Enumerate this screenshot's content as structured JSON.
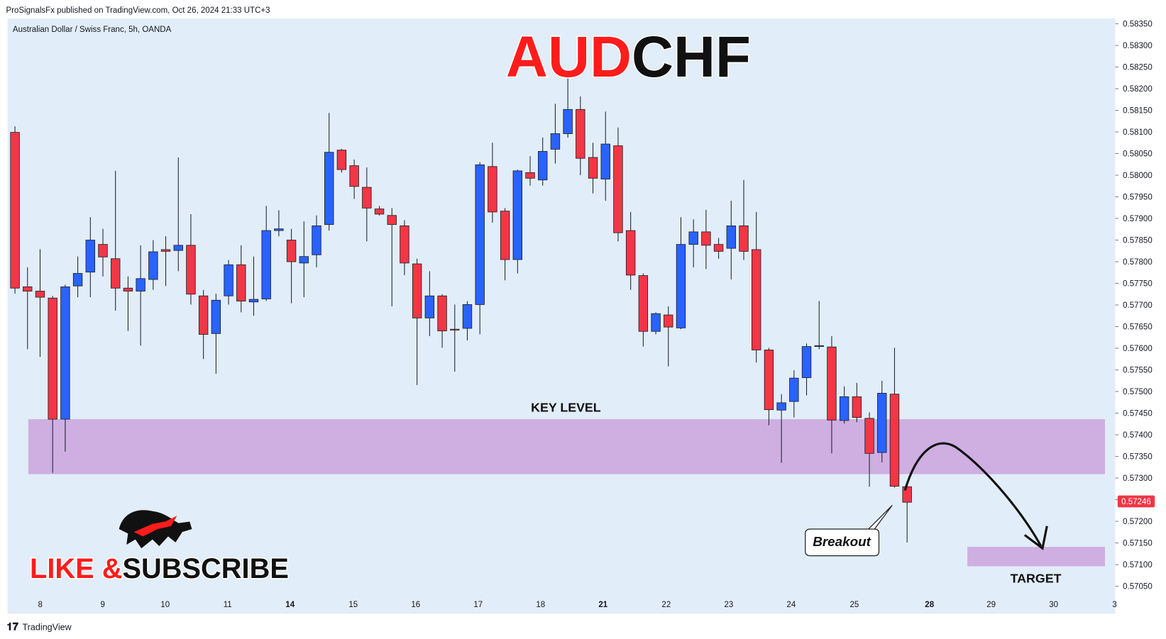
{
  "chart_data": {
    "type": "candlestick",
    "header": "ProSignalsFx published on TradingView.com, Oct 26, 2024 21:33 UTC+3",
    "symbol_label": "Australian Dollar / Swiss Franc, 5h, OANDA",
    "title": [
      {
        "text": "AUD",
        "color": "#ff1c1c"
      },
      {
        "text": "CHF",
        "color": "#111111"
      }
    ],
    "banner": [
      {
        "text": "LIKE &",
        "color": "#ff1c1c"
      },
      {
        "text": "SUBSCRIBE",
        "color": "#111111"
      }
    ],
    "footer": "TradingView",
    "up_color": "#2962ff",
    "down_color": "#f23645",
    "open": [
      0.58099,
      0.57742,
      0.57732,
      0.57716,
      0.57436,
      0.57744,
      0.57776,
      0.5784,
      0.57807,
      0.57739,
      0.57732,
      0.57759,
      0.57828,
      0.57826,
      0.57838,
      0.57721,
      0.57634,
      0.57721,
      0.57793,
      0.57707,
      0.57714,
      0.57872,
      0.5785,
      0.57797,
      0.57816,
      0.57886,
      0.58058,
      0.58022,
      0.57972,
      0.57922,
      0.57907,
      0.57883,
      0.57795,
      0.5767,
      0.57721,
      0.57644,
      0.57646,
      0.57701,
      0.5802,
      0.57917,
      0.57805,
      0.58006,
      0.57989,
      0.5806,
      0.58096,
      0.58152,
      0.58041,
      0.57991,
      0.58068,
      0.57872,
      0.57768,
      0.57639,
      0.57677,
      0.57647,
      0.5784,
      0.57869,
      0.5784,
      0.57831,
      0.57883,
      0.57828,
      0.57596,
      0.57457,
      0.57477,
      0.57532,
      0.57604,
      0.57603,
      0.57433,
      0.57488,
      0.57438,
      0.57359,
      0.57494,
      0.5728
    ],
    "high": [
      0.58113,
      0.57787,
      0.57829,
      0.57721,
      0.57747,
      0.57812,
      0.57903,
      0.57876,
      0.5801,
      0.57766,
      0.57838,
      0.5785,
      0.57859,
      0.58041,
      0.5791,
      0.57735,
      0.57726,
      0.57804,
      0.57838,
      0.57812,
      0.57929,
      0.57919,
      0.57876,
      0.57893,
      0.57907,
      0.58144,
      0.58061,
      0.58036,
      0.58018,
      0.57929,
      0.57924,
      0.57896,
      0.57807,
      0.57778,
      0.57725,
      0.57701,
      0.57709,
      0.5803,
      0.58075,
      0.57924,
      0.58013,
      0.58044,
      0.58087,
      0.58165,
      0.58228,
      0.58182,
      0.58075,
      0.58147,
      0.5811,
      0.57915,
      0.57773,
      0.57683,
      0.57697,
      0.57903,
      0.57898,
      0.5792,
      0.57855,
      0.57941,
      0.57989,
      0.57915,
      0.57601,
      0.57494,
      0.57549,
      0.57611,
      0.57709,
      0.57628,
      0.57512,
      0.5752,
      0.57452,
      0.57525,
      0.57601,
      0.57285
    ],
    "low": [
      0.57726,
      0.57598,
      0.5758,
      0.57312,
      0.57361,
      0.57718,
      0.57718,
      0.57766,
      0.57687,
      0.5764,
      0.57606,
      0.57735,
      0.57744,
      0.57778,
      0.57701,
      0.57575,
      0.57541,
      0.57701,
      0.57683,
      0.57675,
      0.57709,
      0.57859,
      0.57704,
      0.57718,
      0.57787,
      0.57872,
      0.58006,
      0.57945,
      0.57847,
      0.57907,
      0.57697,
      0.57769,
      0.57515,
      0.57628,
      0.57601,
      0.57546,
      0.57618,
      0.57632,
      0.5789,
      0.57757,
      0.57773,
      0.57976,
      0.57976,
      0.58027,
      0.58087,
      0.58,
      0.57958,
      0.57941,
      0.57847,
      0.57735,
      0.57604,
      0.57632,
      0.57558,
      0.57644,
      0.57787,
      0.57783,
      0.57807,
      0.57759,
      0.57804,
      0.57567,
      0.57422,
      0.57335,
      0.5744,
      0.57491,
      0.57598,
      0.57357,
      0.57426,
      0.57429,
      0.5728,
      0.57336,
      0.57278,
      0.57151
    ],
    "close": [
      0.57739,
      0.57732,
      0.57718,
      0.57436,
      0.57742,
      0.57773,
      0.5785,
      0.57811,
      0.57739,
      0.57732,
      0.57761,
      0.57823,
      0.57824,
      0.57838,
      0.57725,
      0.57632,
      0.57711,
      0.57793,
      0.57709,
      0.57713,
      0.57872,
      0.57876,
      0.578,
      0.57812,
      0.57883,
      0.58053,
      0.58013,
      0.57974,
      0.57924,
      0.5791,
      0.57886,
      0.57797,
      0.5767,
      0.57721,
      0.5764,
      0.57642,
      0.57701,
      0.58024,
      0.57915,
      0.57805,
      0.5801,
      0.57993,
      0.58055,
      0.58096,
      0.58152,
      0.58039,
      0.57993,
      0.58072,
      0.57867,
      0.57769,
      0.57639,
      0.5768,
      0.57649,
      0.5784,
      0.57869,
      0.57838,
      0.57824,
      0.57883,
      0.57824,
      0.57596,
      0.57458,
      0.57474,
      0.57531,
      0.57604,
      0.57606,
      0.57434,
      0.57488,
      0.5744,
      0.57357,
      0.57496,
      0.57281,
      0.57244
    ],
    "last_price": 0.57246,
    "x_axis_labels": [
      "8",
      "9",
      "10",
      "11",
      "14",
      "15",
      "16",
      "17",
      "18",
      "21",
      "22",
      "23",
      "24",
      "25",
      "28",
      "29",
      "30",
      "3"
    ],
    "ylim": [
      0.57031,
      0.58362
    ],
    "yticks": [
      {
        "value": 0.5835,
        "label": "0.58350"
      },
      {
        "value": 0.583,
        "label": "0.58300"
      },
      {
        "value": 0.5825,
        "label": "0.58250"
      },
      {
        "value": 0.582,
        "label": "0.58200"
      },
      {
        "value": 0.5815,
        "label": "0.58150"
      },
      {
        "value": 0.581,
        "label": "0.58100"
      },
      {
        "value": 0.5805,
        "label": "0.58050"
      },
      {
        "value": 0.58,
        "label": "0.58000"
      },
      {
        "value": 0.5795,
        "label": "0.57950"
      },
      {
        "value": 0.579,
        "label": "0.57900"
      },
      {
        "value": 0.5785,
        "label": "0.57850"
      },
      {
        "value": 0.578,
        "label": "0.57800"
      },
      {
        "value": 0.5775,
        "label": "0.57750"
      },
      {
        "value": 0.577,
        "label": "0.57700"
      },
      {
        "value": 0.5765,
        "label": "0.57650"
      },
      {
        "value": 0.576,
        "label": "0.57600"
      },
      {
        "value": 0.5755,
        "label": "0.57550"
      },
      {
        "value": 0.575,
        "label": "0.57500"
      },
      {
        "value": 0.5745,
        "label": "0.57450"
      },
      {
        "value": 0.574,
        "label": "0.57400"
      },
      {
        "value": 0.5735,
        "label": "0.57350"
      },
      {
        "value": 0.573,
        "label": "0.57300"
      },
      {
        "value": 0.5725,
        "label": "0.57250"
      },
      {
        "value": 0.572,
        "label": "0.57200"
      },
      {
        "value": 0.5715,
        "label": "0.57150"
      },
      {
        "value": 0.571,
        "label": "0.57100"
      },
      {
        "value": 0.5705,
        "label": "0.57050"
      }
    ],
    "zones": [
      {
        "label": "KEY LEVEL",
        "low": 0.57309,
        "high": 0.57436,
        "color": "#cfaee2"
      },
      {
        "label": "TARGET",
        "low": 0.57096,
        "high": 0.57141,
        "color": "#cfaee2"
      }
    ],
    "callout": "Breakout"
  }
}
